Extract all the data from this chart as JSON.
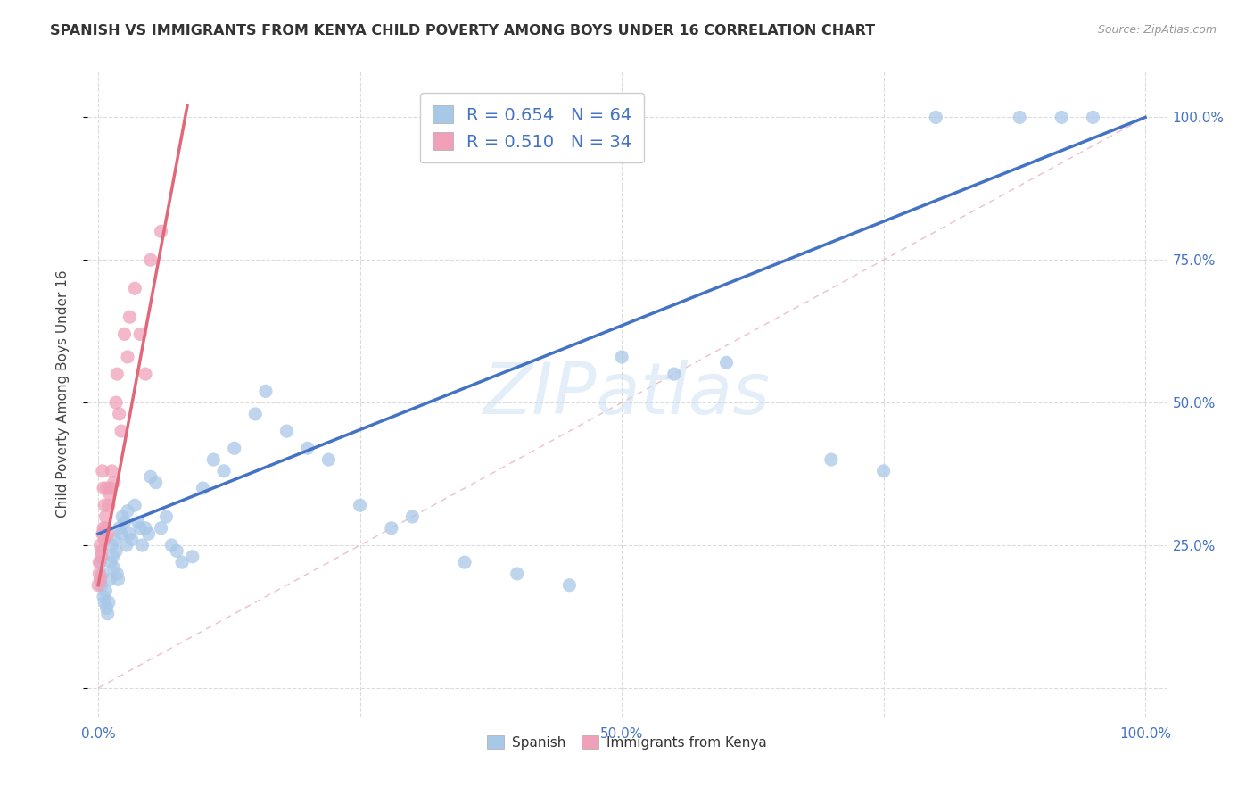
{
  "title": "SPANISH VS IMMIGRANTS FROM KENYA CHILD POVERTY AMONG BOYS UNDER 16 CORRELATION CHART",
  "source": "Source: ZipAtlas.com",
  "ylabel": "Child Poverty Among Boys Under 16",
  "watermark": "ZIPatlas",
  "spanish_R": 0.654,
  "spanish_N": 64,
  "kenya_R": 0.51,
  "kenya_N": 34,
  "spanish_color": "#a8c8e8",
  "kenya_color": "#f0a0b8",
  "spanish_line_color": "#4472c4",
  "kenya_line_color": "#e06878",
  "diagonal_color": "#e8b0bc",
  "background_color": "#ffffff",
  "grid_color": "#d8d8d8",
  "title_color": "#333333",
  "source_color": "#999999",
  "tick_color": "#4472c4",
  "ylabel_color": "#444444",
  "xlim": [
    0.0,
    1.0
  ],
  "ylim": [
    0.0,
    1.0
  ],
  "x_ticks": [
    0.0,
    0.25,
    0.5,
    0.75,
    1.0
  ],
  "x_tick_labels": [
    "0.0%",
    "",
    "50.0%",
    "",
    "100.0%"
  ],
  "y_ticks_right": [
    0.25,
    0.5,
    0.75,
    1.0
  ],
  "y_tick_labels_right": [
    "25.0%",
    "50.0%",
    "75.0%",
    "100.0%"
  ],
  "spanish_x": [
    0.002,
    0.003,
    0.004,
    0.005,
    0.006,
    0.007,
    0.008,
    0.009,
    0.01,
    0.011,
    0.012,
    0.013,
    0.014,
    0.015,
    0.016,
    0.017,
    0.018,
    0.019,
    0.02,
    0.022,
    0.023,
    0.025,
    0.027,
    0.028,
    0.03,
    0.032,
    0.035,
    0.038,
    0.04,
    0.042,
    0.045,
    0.048,
    0.05,
    0.055,
    0.06,
    0.065,
    0.07,
    0.075,
    0.08,
    0.09,
    0.1,
    0.11,
    0.12,
    0.13,
    0.15,
    0.16,
    0.18,
    0.2,
    0.22,
    0.25,
    0.28,
    0.3,
    0.35,
    0.4,
    0.45,
    0.5,
    0.55,
    0.6,
    0.7,
    0.75,
    0.8,
    0.88,
    0.92,
    0.95
  ],
  "spanish_y": [
    0.22,
    0.18,
    0.2,
    0.16,
    0.15,
    0.17,
    0.14,
    0.13,
    0.15,
    0.19,
    0.22,
    0.25,
    0.23,
    0.21,
    0.26,
    0.24,
    0.2,
    0.19,
    0.28,
    0.27,
    0.3,
    0.29,
    0.25,
    0.31,
    0.27,
    0.26,
    0.32,
    0.29,
    0.28,
    0.25,
    0.28,
    0.27,
    0.37,
    0.36,
    0.28,
    0.3,
    0.25,
    0.24,
    0.22,
    0.23,
    0.35,
    0.4,
    0.38,
    0.42,
    0.48,
    0.52,
    0.45,
    0.42,
    0.4,
    0.32,
    0.28,
    0.3,
    0.22,
    0.2,
    0.18,
    0.58,
    0.55,
    0.57,
    0.4,
    0.38,
    1.0,
    1.0,
    1.0,
    1.0
  ],
  "kenya_x": [
    0.0,
    0.001,
    0.001,
    0.002,
    0.002,
    0.003,
    0.003,
    0.004,
    0.004,
    0.005,
    0.005,
    0.006,
    0.006,
    0.007,
    0.007,
    0.008,
    0.009,
    0.01,
    0.011,
    0.012,
    0.013,
    0.015,
    0.017,
    0.018,
    0.02,
    0.022,
    0.025,
    0.028,
    0.03,
    0.035,
    0.04,
    0.045,
    0.05,
    0.06
  ],
  "kenya_y": [
    0.18,
    0.22,
    0.2,
    0.25,
    0.19,
    0.24,
    0.23,
    0.38,
    0.27,
    0.35,
    0.28,
    0.32,
    0.26,
    0.3,
    0.28,
    0.35,
    0.27,
    0.32,
    0.34,
    0.35,
    0.38,
    0.36,
    0.5,
    0.55,
    0.48,
    0.45,
    0.62,
    0.58,
    0.65,
    0.7,
    0.62,
    0.55,
    0.75,
    0.8
  ],
  "spanish_line_x": [
    0.0,
    1.0
  ],
  "spanish_line_y": [
    0.27,
    1.0
  ],
  "kenya_line_x": [
    0.0,
    0.085
  ],
  "kenya_line_y": [
    0.18,
    1.02
  ]
}
